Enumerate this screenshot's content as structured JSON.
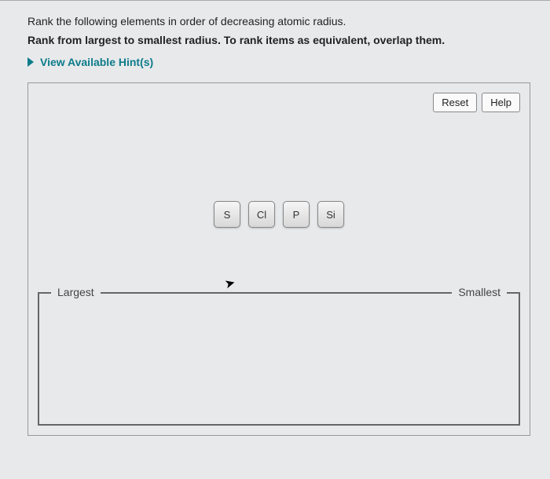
{
  "question": {
    "prompt": "Rank the following elements in order of decreasing atomic radius.",
    "instruction": "Rank from largest to smallest radius. To rank items as equivalent, overlap them."
  },
  "hints": {
    "toggle_label": "View Available Hint(s)"
  },
  "workspace": {
    "buttons": {
      "reset": "Reset",
      "help": "Help"
    },
    "tiles": [
      "S",
      "Cl",
      "P",
      "Si"
    ],
    "drop_zone": {
      "left_label": "Largest",
      "right_label": "Smallest"
    }
  },
  "colors": {
    "background": "#e8e9eb",
    "accent": "#0d7b8a",
    "border": "#999",
    "text": "#222"
  }
}
